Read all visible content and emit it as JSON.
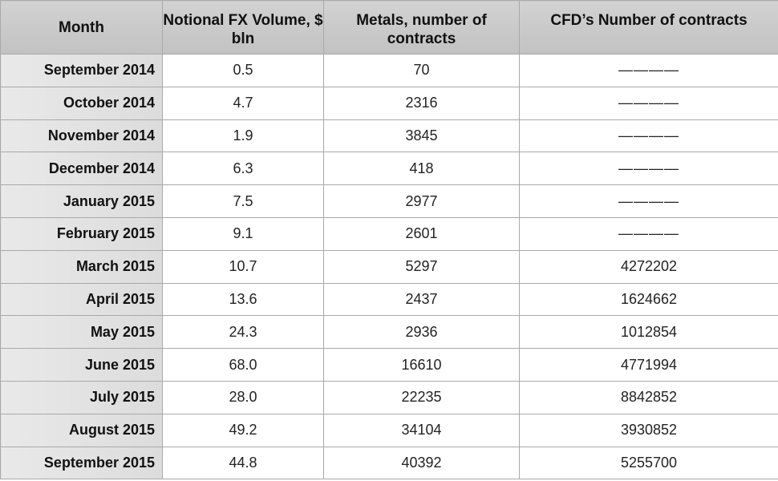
{
  "table": {
    "header": [
      "Month",
      "Notional FX Volume, $ bln",
      "Metals, number of contracts",
      "CFD’s Number of contracts"
    ],
    "rows": [
      [
        "September 2014",
        "0.5",
        "70",
        "————"
      ],
      [
        "October 2014",
        "4.7",
        "2316",
        "————"
      ],
      [
        "November 2014",
        "1.9",
        "3845",
        "————"
      ],
      [
        "December 2014",
        "6.3",
        "418",
        "————"
      ],
      [
        "January 2015",
        "7.5",
        "2977",
        "————"
      ],
      [
        "February 2015",
        "9.1",
        "2601",
        "————"
      ],
      [
        "March 2015",
        "10.7",
        "5297",
        "4272202"
      ],
      [
        "April 2015",
        "13.6",
        "2437",
        "1624662"
      ],
      [
        "May 2015",
        "24.3",
        "2936",
        "1012854"
      ],
      [
        "June 2015",
        "68.0",
        "16610",
        "4771994"
      ],
      [
        "July 2015",
        "28.0",
        "22235",
        "8842852"
      ],
      [
        "August 2015",
        "49.2",
        "34104",
        "3930852"
      ],
      [
        "September 2015",
        "44.8",
        "40392",
        "5255700"
      ]
    ]
  }
}
